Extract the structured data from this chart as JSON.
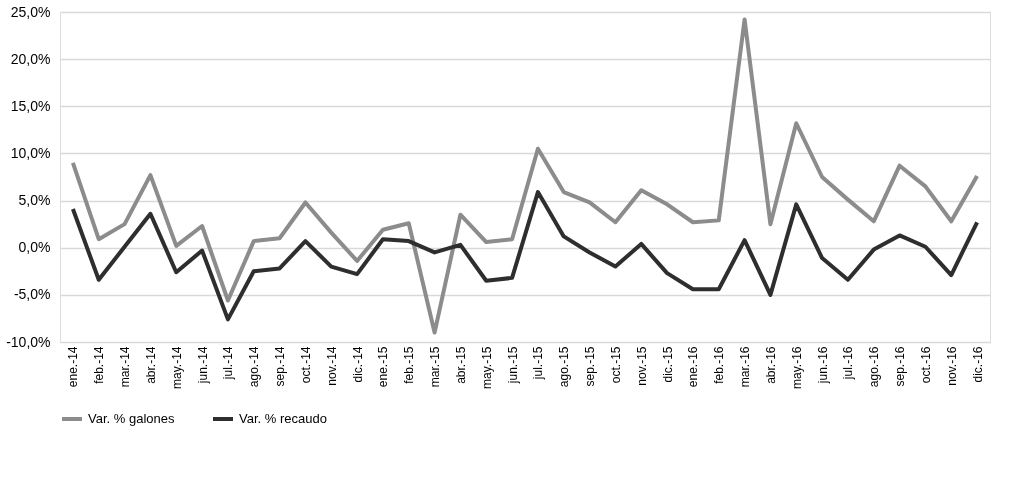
{
  "chart_data": {
    "type": "line",
    "categories": [
      "ene.-14",
      "feb.-14",
      "mar.-14",
      "abr.-14",
      "may.-14",
      "jun.-14",
      "jul.-14",
      "ago.-14",
      "sep.-14",
      "oct.-14",
      "nov.-14",
      "dic.-14",
      "ene.-15",
      "feb.-15",
      "mar.-15",
      "abr.-15",
      "may.-15",
      "jun.-15",
      "jul.-15",
      "ago.-15",
      "sep.-15",
      "oct.-15",
      "nov.-15",
      "dic.-15",
      "ene.-16",
      "feb.-16",
      "mar.-16",
      "abr.-16",
      "may.-16",
      "jun.-16",
      "jul.-16",
      "ago.-16",
      "sep.-16",
      "oct.-16",
      "nov.-16",
      "dic.-16"
    ],
    "series": [
      {
        "name": "Var. % galones",
        "color": "#8c8c8c",
        "values": [
          9.0,
          0.9,
          2.5,
          7.7,
          0.2,
          2.3,
          -5.6,
          0.7,
          1.0,
          4.8,
          1.6,
          -1.4,
          1.9,
          2.6,
          -9.0,
          3.5,
          0.6,
          0.9,
          10.5,
          5.9,
          4.8,
          2.7,
          6.1,
          4.6,
          2.7,
          2.9,
          24.2,
          2.5,
          13.2,
          7.5,
          5.1,
          2.8,
          8.7,
          6.5,
          2.8,
          7.6
        ]
      },
      {
        "name": "Var. % recaudo",
        "color": "#2e2e2e",
        "values": [
          4.1,
          -3.4,
          0.1,
          3.6,
          -2.6,
          -0.3,
          -7.6,
          -2.5,
          -2.2,
          0.7,
          -2.0,
          -2.8,
          0.9,
          0.7,
          -0.5,
          0.3,
          -3.5,
          -3.2,
          5.9,
          1.2,
          -0.5,
          -2.0,
          0.4,
          -2.7,
          -4.4,
          -4.4,
          0.8,
          -5.0,
          4.6,
          -1.1,
          -3.4,
          -0.2,
          1.3,
          0.1,
          -2.9,
          2.7
        ]
      }
    ],
    "ylim": [
      -10,
      25
    ],
    "yticks": [
      {
        "value": -10,
        "label": "-10,0%"
      },
      {
        "value": -5,
        "label": "-5,0%"
      },
      {
        "value": 0,
        "label": "0,0%"
      },
      {
        "value": 5,
        "label": "5,0%"
      },
      {
        "value": 10,
        "label": "10,0%"
      },
      {
        "value": 15,
        "label": "15,0%"
      },
      {
        "value": 20,
        "label": "20,0%"
      },
      {
        "value": 25,
        "label": "25,0%"
      }
    ],
    "grid": "y",
    "legend": "bottom",
    "marker": "none",
    "line_style": "solid"
  }
}
